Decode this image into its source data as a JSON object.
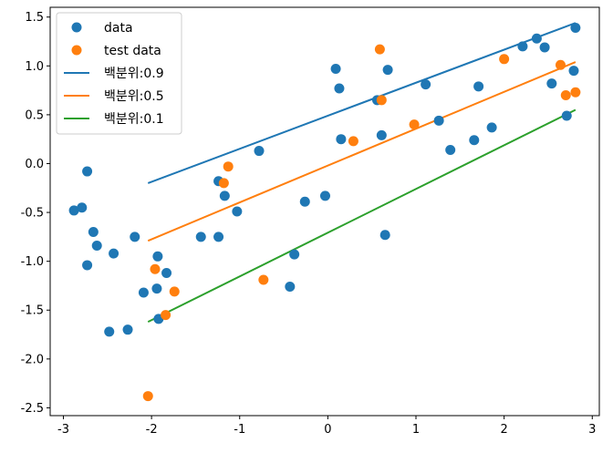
{
  "chart_data": {
    "type": "scatter",
    "title": "",
    "xlabel": "",
    "ylabel": "",
    "xlim": [
      -3.15,
      3.08
    ],
    "ylim": [
      -2.58,
      1.6
    ],
    "xticks": [
      -3,
      -2,
      -1,
      0,
      1,
      2,
      3
    ],
    "yticks": [
      -2.5,
      -2.0,
      -1.5,
      -1.0,
      -0.5,
      0.0,
      0.5,
      1.0,
      1.5
    ],
    "xtick_labels": [
      "-3",
      "-2",
      "-1",
      "0",
      "1",
      "2",
      "3"
    ],
    "ytick_labels": [
      "-2.5",
      "-2.0",
      "-1.5",
      "-1.0",
      "-0.5",
      "0.0",
      "0.5",
      "1.0",
      "1.5"
    ],
    "grid": false,
    "legend_position": "top-left",
    "series": [
      {
        "name": "data",
        "kind": "scatter",
        "color": "#1f77b4",
        "points": [
          [
            -2.88,
            -0.48
          ],
          [
            -2.79,
            -0.45
          ],
          [
            -2.73,
            -0.08
          ],
          [
            -2.73,
            -1.04
          ],
          [
            -2.66,
            -0.7
          ],
          [
            -2.62,
            -0.84
          ],
          [
            -2.48,
            -1.72
          ],
          [
            -2.43,
            -0.92
          ],
          [
            -2.27,
            -1.7
          ],
          [
            -2.19,
            -0.75
          ],
          [
            -2.09,
            -1.32
          ],
          [
            -1.94,
            -1.28
          ],
          [
            -1.93,
            -0.95
          ],
          [
            -1.92,
            -1.59
          ],
          [
            -1.83,
            -1.12
          ],
          [
            -1.44,
            -0.75
          ],
          [
            -1.24,
            -0.18
          ],
          [
            -1.24,
            -0.75
          ],
          [
            -1.17,
            -0.33
          ],
          [
            -1.03,
            -0.49
          ],
          [
            -0.78,
            0.13
          ],
          [
            -0.43,
            -1.26
          ],
          [
            -0.38,
            -0.93
          ],
          [
            -0.26,
            -0.39
          ],
          [
            -0.03,
            -0.33
          ],
          [
            0.09,
            0.97
          ],
          [
            0.13,
            0.77
          ],
          [
            0.15,
            0.25
          ],
          [
            0.56,
            0.65
          ],
          [
            0.61,
            0.29
          ],
          [
            0.65,
            -0.73
          ],
          [
            0.68,
            0.96
          ],
          [
            1.11,
            0.81
          ],
          [
            1.26,
            0.44
          ],
          [
            1.39,
            0.14
          ],
          [
            1.66,
            0.24
          ],
          [
            1.71,
            0.79
          ],
          [
            1.86,
            0.37
          ],
          [
            2.21,
            1.2
          ],
          [
            2.37,
            1.28
          ],
          [
            2.46,
            1.19
          ],
          [
            2.54,
            0.82
          ],
          [
            2.71,
            0.49
          ],
          [
            2.79,
            0.95
          ],
          [
            2.81,
            1.39
          ]
        ]
      },
      {
        "name": "test data",
        "kind": "scatter",
        "color": "#ff7f0e",
        "points": [
          [
            -2.04,
            -2.38
          ],
          [
            -1.96,
            -1.08
          ],
          [
            -1.84,
            -1.55
          ],
          [
            -1.74,
            -1.31
          ],
          [
            -1.18,
            -0.2
          ],
          [
            -1.13,
            -0.03
          ],
          [
            -0.73,
            -1.19
          ],
          [
            0.29,
            0.23
          ],
          [
            0.59,
            1.17
          ],
          [
            0.61,
            0.65
          ],
          [
            0.98,
            0.4
          ],
          [
            2.0,
            1.07
          ],
          [
            2.64,
            1.01
          ],
          [
            2.7,
            0.7
          ],
          [
            2.81,
            0.73
          ]
        ]
      },
      {
        "name": "백분위:0.9",
        "kind": "line",
        "color": "#1f77b4",
        "points": [
          [
            -2.04,
            -0.2
          ],
          [
            2.81,
            1.44
          ]
        ]
      },
      {
        "name": "백분위:0.5",
        "kind": "line",
        "color": "#ff7f0e",
        "points": [
          [
            -2.04,
            -0.79
          ],
          [
            2.81,
            1.04
          ]
        ]
      },
      {
        "name": "백분위:0.1",
        "kind": "line",
        "color": "#2ca02c",
        "points": [
          [
            -2.04,
            -1.62
          ],
          [
            2.81,
            0.55
          ]
        ]
      }
    ]
  }
}
